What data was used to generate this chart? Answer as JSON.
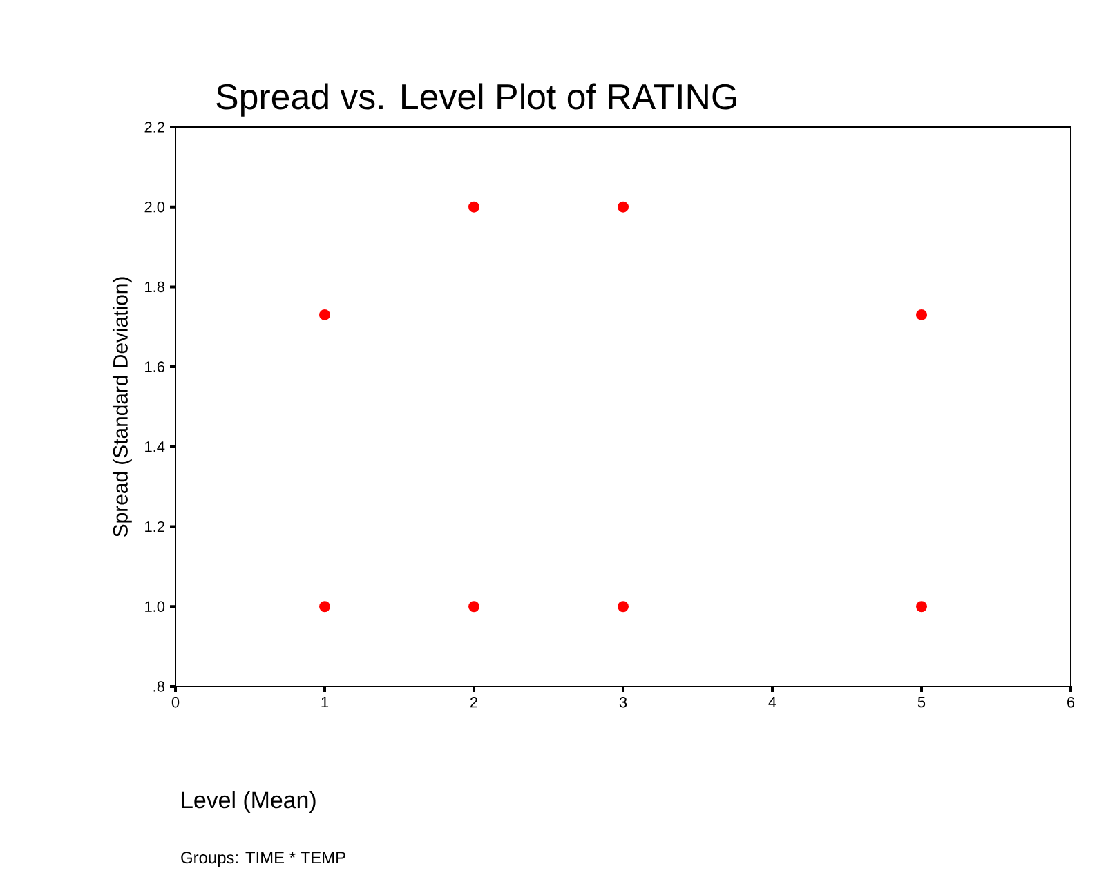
{
  "chart_data": {
    "type": "scatter",
    "title": "Spread vs.  Level Plot of RATING",
    "xlabel": "Level (Mean)",
    "ylabel": "Spread (Standard Deviation)",
    "annotations": [
      "Groups: TIME * TEMP"
    ],
    "series": [
      {
        "color": "#ff0000",
        "x": [
          1,
          1,
          2,
          2,
          3,
          3,
          5,
          5
        ],
        "values": [
          1.73,
          1.0,
          2.0,
          1.0,
          2.0,
          1.0,
          1.73,
          1.0
        ]
      }
    ],
    "xlim": [
      0,
      6
    ],
    "ylim": [
      0.8,
      2.2
    ],
    "xticks": [
      0,
      1,
      2,
      3,
      4,
      5,
      6
    ],
    "yticks": [
      {
        "value": 0.8,
        "label": ".8"
      },
      {
        "value": 1.0,
        "label": "1.0"
      },
      {
        "value": 1.2,
        "label": "1.2"
      },
      {
        "value": 1.4,
        "label": "1.4"
      },
      {
        "value": 1.6,
        "label": "1.6"
      },
      {
        "value": 1.8,
        "label": "1.8"
      },
      {
        "value": 2.0,
        "label": "2.0"
      },
      {
        "value": 2.2,
        "label": "2.2"
      }
    ],
    "marker": "circle"
  }
}
